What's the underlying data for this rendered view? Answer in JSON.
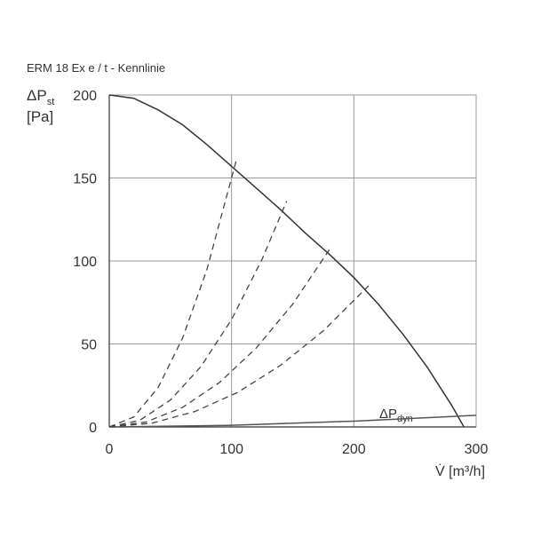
{
  "chart_data": {
    "type": "line",
    "title": "ERM 18 Ex e / t - Kennlinie",
    "ylabel": {
      "main": "ΔP",
      "sub": "st",
      "unit": "[Pa]"
    },
    "xlabel": "V̇ [m³/h]",
    "annotation": {
      "main": "ΔP",
      "sub": "dyn"
    },
    "xlim": [
      0,
      300
    ],
    "ylim": [
      0,
      200
    ],
    "xticks": [
      0,
      100,
      200,
      300
    ],
    "yticks": [
      0,
      50,
      100,
      150,
      200
    ],
    "grid": true,
    "series": [
      {
        "style": "solid",
        "color": "#333333",
        "x": [
          0,
          20,
          40,
          60,
          80,
          100,
          120,
          140,
          160,
          180,
          200,
          220,
          240,
          260,
          280,
          290
        ],
        "values": [
          200,
          198,
          191,
          182,
          170,
          157,
          144,
          131,
          117,
          104,
          90,
          74,
          56,
          36,
          13,
          0
        ]
      },
      {
        "style": "solid",
        "color": "#555555",
        "x": [
          0,
          100,
          200,
          300
        ],
        "values": [
          0,
          1,
          3.5,
          7
        ]
      },
      {
        "style": "dashed",
        "color": "#444444",
        "x": [
          0,
          20,
          40,
          60,
          80,
          104
        ],
        "values": [
          0,
          6,
          23.8,
          53.6,
          95.2,
          161
        ]
      },
      {
        "style": "dashed",
        "color": "#444444",
        "x": [
          0,
          25,
          50,
          75,
          100,
          125,
          145
        ],
        "values": [
          0,
          4,
          16.2,
          36.4,
          64.7,
          101.1,
          136
        ]
      },
      {
        "style": "dashed",
        "color": "#444444",
        "x": [
          0,
          30,
          60,
          90,
          120,
          150,
          182
        ],
        "values": [
          0,
          3,
          11.8,
          26.7,
          47.4,
          74,
          109
        ]
      },
      {
        "style": "dashed",
        "color": "#444444",
        "x": [
          0,
          35,
          70,
          105,
          140,
          175,
          212
        ],
        "values": [
          0,
          2.3,
          9.3,
          20.8,
          37.1,
          57.9,
          85
        ]
      }
    ]
  }
}
